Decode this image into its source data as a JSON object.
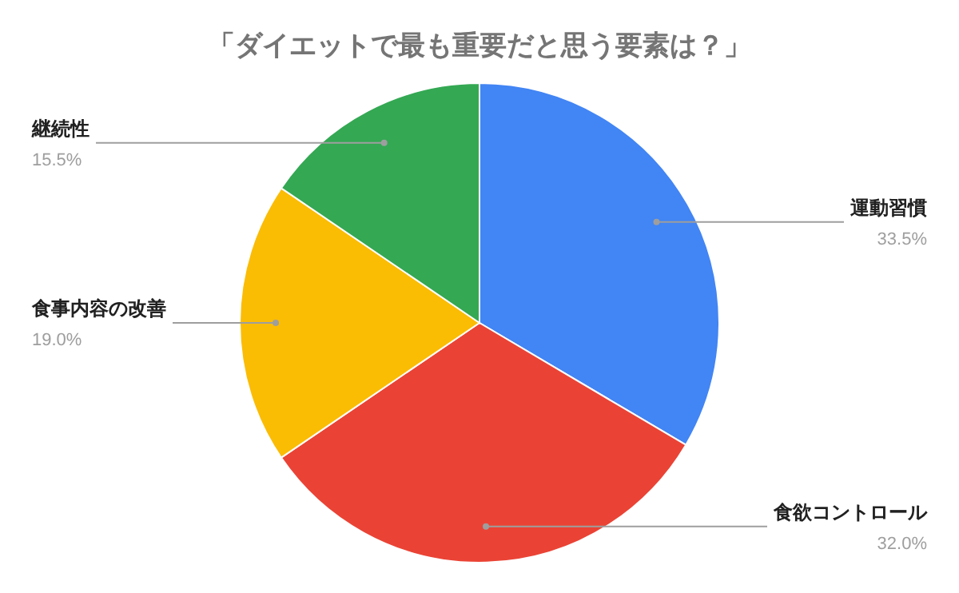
{
  "chart_data": {
    "type": "pie",
    "title": "「ダイエットで最も重要だと思う要素は？」",
    "categories": [
      "運動習慣",
      "食欲コントロール",
      "食事内容の改善",
      "継続性"
    ],
    "values": [
      33.5,
      32.0,
      19.0,
      15.5
    ],
    "colors": [
      "#4285f4",
      "#ea4335",
      "#fbbc04",
      "#34a853"
    ],
    "value_labels": [
      "33.5%",
      "32.0%",
      "19.0%",
      "15.5%"
    ]
  }
}
